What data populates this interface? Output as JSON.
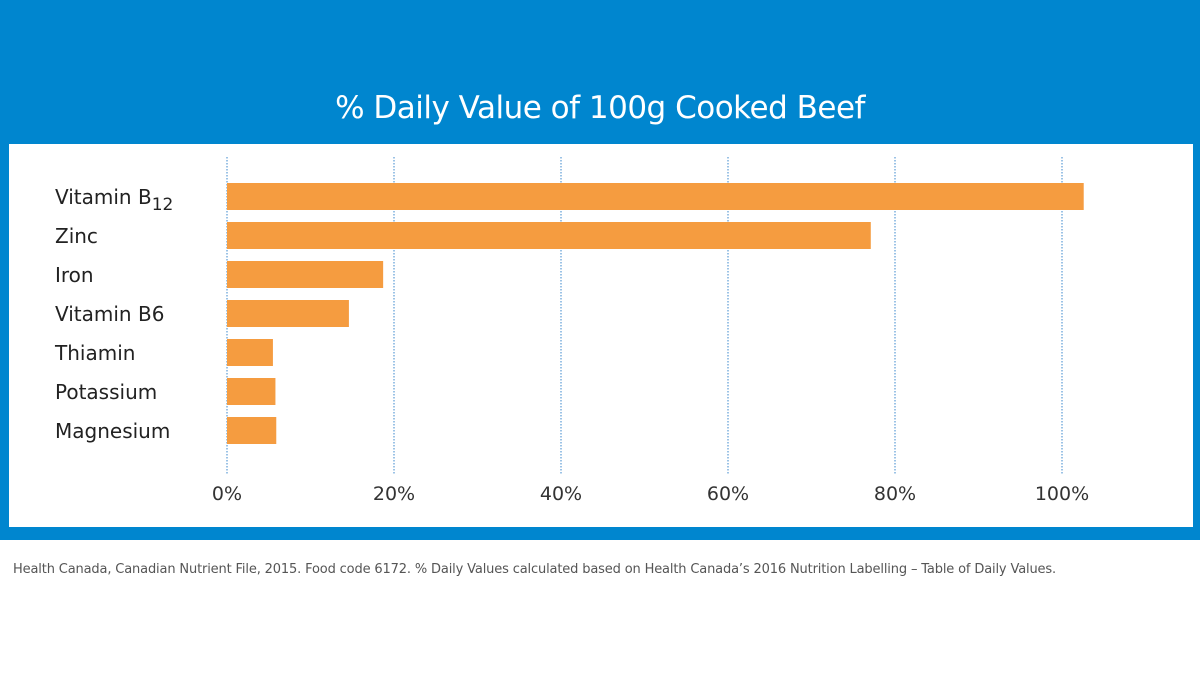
{
  "chart_data": {
    "type": "bar",
    "orientation": "horizontal",
    "title": "% Daily Value of 100g Cooked Beef",
    "categories": [
      {
        "label": "Vitamin B",
        "sub": "12"
      },
      {
        "label": "Zinc",
        "sub": ""
      },
      {
        "label": "Iron",
        "sub": ""
      },
      {
        "label": "Vitamin B6",
        "sub": ""
      },
      {
        "label": "Thiamin",
        "sub": ""
      },
      {
        "label": "Potassium",
        "sub": ""
      },
      {
        "label": "Magnesium",
        "sub": ""
      }
    ],
    "values": [
      102.6,
      77.1,
      18.7,
      14.6,
      5.5,
      5.8,
      5.9
    ],
    "xlim": [
      0,
      100
    ],
    "xticks": [
      "0%",
      "20%",
      "40%",
      "60%",
      "80%",
      "100%"
    ],
    "xtick_values": [
      0,
      20,
      40,
      60,
      80,
      100
    ],
    "grid": "vertical dotted",
    "colors": {
      "bar": "#f59c40",
      "background": "#0086cf",
      "grid": "#5b9bd5"
    }
  },
  "footnote": "Health Canada, Canadian Nutrient File, 2015. Food code 6172. % Daily Values calculated based on Health Canada’s 2016 Nutrition Labelling – Table of Daily Values."
}
